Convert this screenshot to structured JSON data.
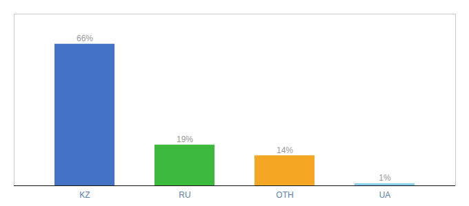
{
  "chart_data": {
    "type": "bar",
    "categories": [
      "KZ",
      "RU",
      "OTH",
      "UA"
    ],
    "values": [
      66,
      19,
      14,
      1
    ],
    "value_labels": [
      "66%",
      "19%",
      "14%",
      "1%"
    ],
    "colors": [
      "#4472c4",
      "#3dba3d",
      "#f5a623",
      "#87ceeb"
    ],
    "ylim": [
      0,
      80
    ],
    "data_labels": true,
    "tick_labels": "x"
  }
}
